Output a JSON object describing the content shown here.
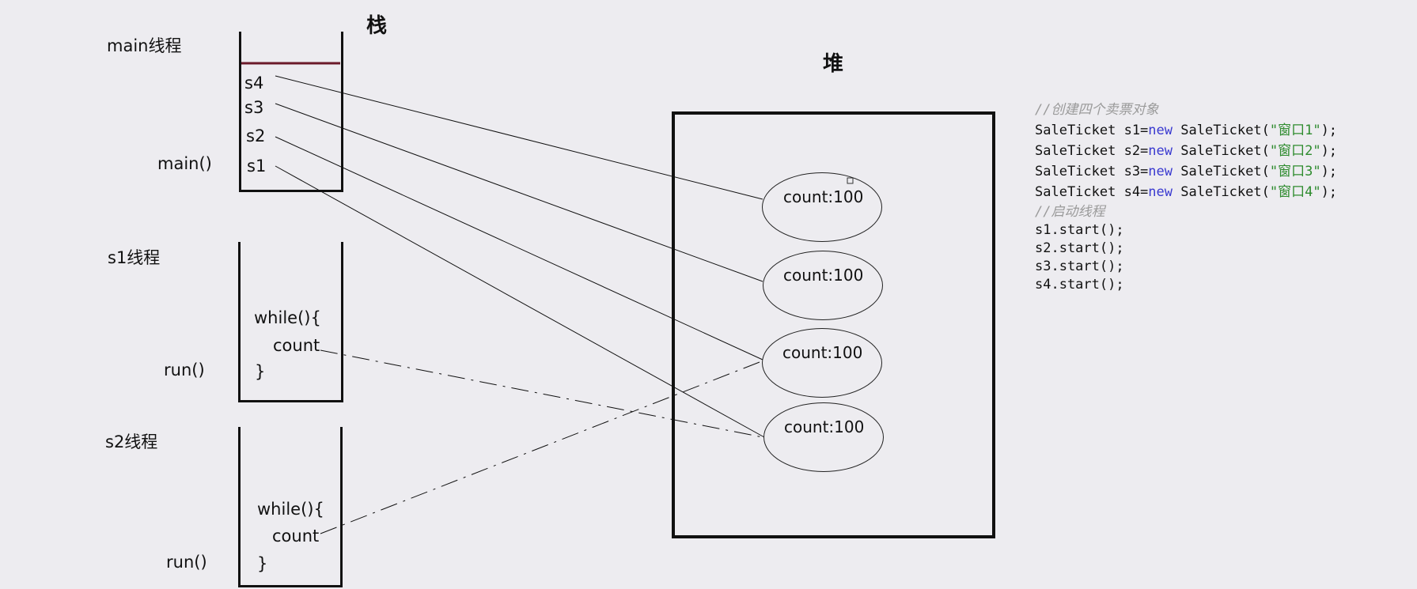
{
  "stack_title": "栈",
  "heap_title": "堆",
  "main_thread": {
    "label": "main线程",
    "method": "main()",
    "vars": [
      "s4",
      "s3",
      "s2",
      "s1"
    ]
  },
  "s1_thread": {
    "label": "s1线程",
    "method": "run()",
    "code": [
      "while(){",
      "count",
      "}"
    ]
  },
  "s2_thread": {
    "label": "s2线程",
    "method": "run()",
    "code": [
      "while(){",
      "count",
      "}"
    ]
  },
  "heap_objects": [
    "count:100",
    "count:100",
    "count:100",
    "count:100"
  ],
  "code_panel": {
    "comment1": "//创建四个卖票对象",
    "lines": [
      {
        "pre": "SaleTicket s1=",
        "kw": "new",
        "mid": " SaleTicket(",
        "str": "\"窗口1\"",
        "post": ");"
      },
      {
        "pre": "SaleTicket s2=",
        "kw": "new",
        "mid": " SaleTicket(",
        "str": "\"窗口2\"",
        "post": ");"
      },
      {
        "pre": "SaleTicket s3=",
        "kw": "new",
        "mid": " SaleTicket(",
        "str": "\"窗口3\"",
        "post": ");"
      },
      {
        "pre": "SaleTicket s4=",
        "kw": "new",
        "mid": " SaleTicket(",
        "str": "\"窗口4\"",
        "post": ");"
      }
    ],
    "comment2": "//启动线程",
    "starts": [
      "s1.start();",
      "s2.start();",
      "s3.start();",
      "s4.start();"
    ]
  },
  "colors": {
    "background": "#edecf0",
    "stack_top_line": "#6b1a2a",
    "keyword": "#3a3ad0",
    "string": "#2e8b2e",
    "comment": "#9a9a9a"
  }
}
